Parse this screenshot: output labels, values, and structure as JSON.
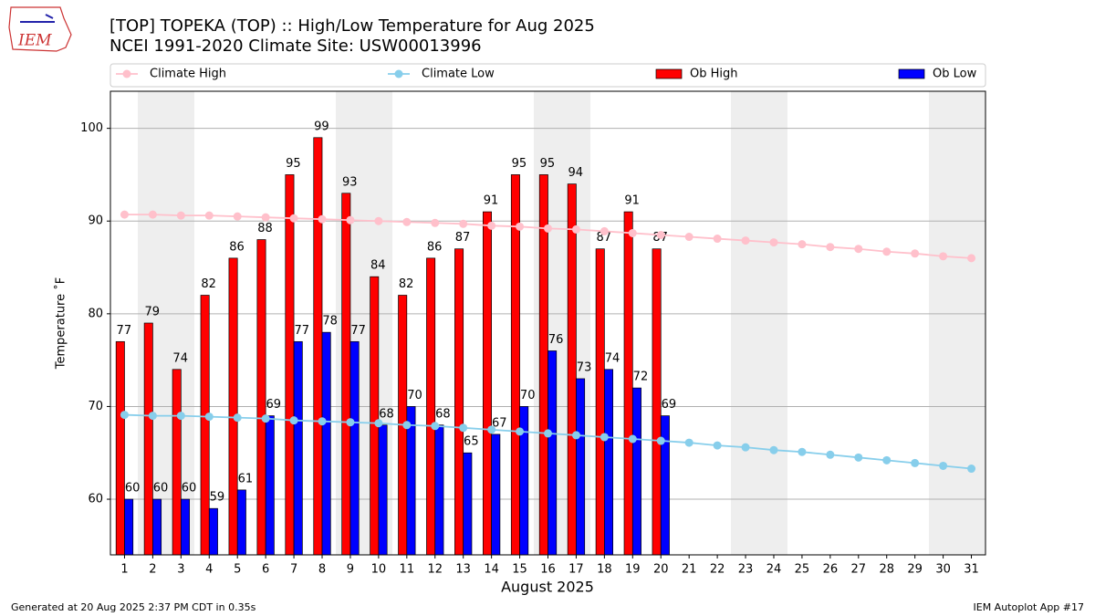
{
  "chart_data": {
    "type": "bar_line",
    "title": "[TOP] TOPEKA (TOP) :: High/Low Temperature for Aug 2025",
    "subtitle": "NCEI 1991-2020 Climate Site: USW00013996",
    "x_label": "August 2025",
    "y_label": "Temperature ˚F",
    "footer_left": "Generated at 20 Aug 2025 2:37 PM CDT in 0.35s",
    "footer_right": "IEM Autoplot App #17",
    "logo_text": "IEM",
    "x": [
      1,
      2,
      3,
      4,
      5,
      6,
      7,
      8,
      9,
      10,
      11,
      12,
      13,
      14,
      15,
      16,
      17,
      18,
      19,
      20,
      21,
      22,
      23,
      24,
      25,
      26,
      27,
      28,
      29,
      30,
      31
    ],
    "xlim": [
      0.5,
      31.5
    ],
    "xticks": [
      1,
      2,
      3,
      4,
      5,
      6,
      7,
      8,
      9,
      10,
      11,
      12,
      13,
      14,
      15,
      16,
      17,
      18,
      19,
      20,
      21,
      22,
      23,
      24,
      25,
      26,
      27,
      28,
      29,
      30,
      31
    ],
    "ylim": [
      54,
      104
    ],
    "yticks": [
      60,
      70,
      80,
      90,
      100
    ],
    "grid": true,
    "series": [
      {
        "name": "Climate High",
        "kind": "line",
        "color": "#ffc0cb",
        "values": [
          90.7,
          90.7,
          90.6,
          90.6,
          90.5,
          90.4,
          90.3,
          90.2,
          90.1,
          90.0,
          89.9,
          89.8,
          89.7,
          89.5,
          89.4,
          89.2,
          89.1,
          88.9,
          88.7,
          88.5,
          88.3,
          88.1,
          87.9,
          87.7,
          87.5,
          87.2,
          87.0,
          86.7,
          86.5,
          86.2,
          86.0
        ]
      },
      {
        "name": "Climate Low",
        "kind": "line",
        "color": "#87ceeb",
        "values": [
          69.1,
          69.0,
          69.0,
          68.9,
          68.8,
          68.7,
          68.5,
          68.4,
          68.3,
          68.2,
          68.0,
          67.9,
          67.7,
          67.5,
          67.3,
          67.1,
          66.9,
          66.7,
          66.5,
          66.3,
          66.1,
          65.8,
          65.6,
          65.3,
          65.1,
          64.8,
          64.5,
          64.2,
          63.9,
          63.6,
          63.3
        ]
      },
      {
        "name": "Ob High",
        "kind": "bar",
        "color": "#ff0000",
        "values": [
          77,
          79,
          74,
          82,
          86,
          88,
          95,
          99,
          93,
          84,
          82,
          86,
          87,
          91,
          95,
          95,
          94,
          87,
          91,
          87,
          null,
          null,
          null,
          null,
          null,
          null,
          null,
          null,
          null,
          null,
          null
        ]
      },
      {
        "name": "Ob Low",
        "kind": "bar",
        "color": "#0000ff",
        "values": [
          60,
          60,
          60,
          59,
          61,
          69,
          77,
          78,
          77,
          68,
          70,
          68,
          65,
          67,
          70,
          76,
          73,
          74,
          72,
          69,
          null,
          null,
          null,
          null,
          null,
          null,
          null,
          null,
          null,
          null,
          null
        ]
      }
    ]
  }
}
